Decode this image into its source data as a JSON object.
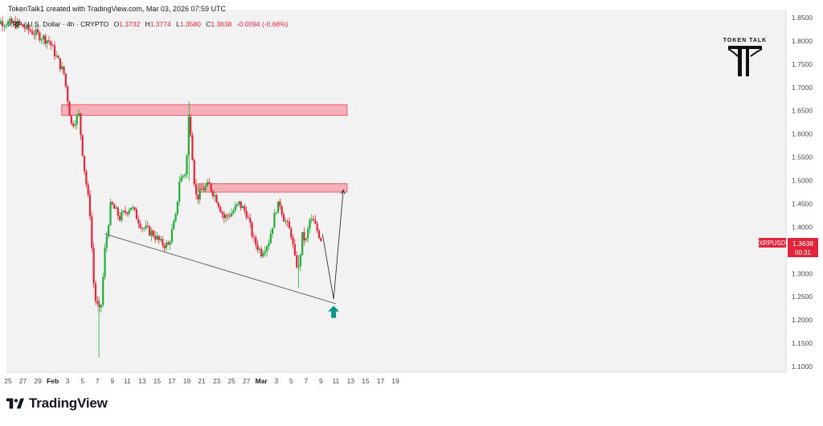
{
  "header": {
    "credit": "TokenTalk1 created with TradingView.com, Mar 03, 2026 07:59 UTC",
    "symbol_line": "XRP / U.S. Dollar · 4h · CRYPTO",
    "ohlc": {
      "o_label": "O",
      "o": "1.3732",
      "h_label": "H",
      "h": "1.3774",
      "l_label": "L",
      "l": "1.3580",
      "c_label": "C",
      "c": "1.3638",
      "change": "-0.0094 (-0.68%)"
    }
  },
  "watermark": {
    "brand": "TOKEN TALK"
  },
  "price_tag": {
    "symbol": "XRPUSD",
    "price": "1.3638",
    "countdown": "00:31"
  },
  "footer": {
    "brand": "TradingView"
  },
  "colors": {
    "up": "#26a69a",
    "down": "#ef5350",
    "up_candle": "#22ab3b",
    "down_candle": "#e0253b",
    "zone_fill": "#f6a6ad",
    "zone_border": "#e65a66",
    "arrow": "#0d9488",
    "plot_bg": "#f2f2f2"
  },
  "chart_data": {
    "type": "candlestick",
    "yaxis": {
      "ticks": [
        "1.8500",
        "1.8000",
        "1.7500",
        "1.7000",
        "1.6500",
        "1.6000",
        "1.5500",
        "1.5000",
        "1.4500",
        "1.4000",
        "1.3500",
        "1.3000",
        "1.2500",
        "1.2000",
        "1.1500",
        "1.1000"
      ],
      "range": [
        1.09,
        1.86
      ]
    },
    "xaxis": {
      "ticks": [
        "25",
        "27",
        "29",
        "Feb",
        "3",
        "5",
        "7",
        "9",
        "11",
        "13",
        "15",
        "17",
        "19",
        "21",
        "23",
        "25",
        "27",
        "Mar",
        "3",
        "5",
        "7",
        "9",
        "11",
        "13",
        "15",
        "17",
        "19"
      ],
      "start_label": "25",
      "end_label": "19"
    },
    "path_points": [
      [
        22.5,
        1.845
      ],
      [
        26.5,
        1.835
      ],
      [
        30.5,
        1.8
      ],
      [
        32.5,
        1.73
      ],
      [
        33.5,
        1.62
      ],
      [
        34.5,
        1.64
      ],
      [
        35.2,
        1.53
      ],
      [
        36.0,
        1.43
      ],
      [
        36.6,
        1.25
      ],
      [
        37.4,
        1.21
      ],
      [
        38.0,
        1.35
      ],
      [
        38.8,
        1.45
      ],
      [
        40.0,
        1.42
      ],
      [
        41.5,
        1.445
      ],
      [
        43.0,
        1.4
      ],
      [
        44.5,
        1.385
      ],
      [
        45.5,
        1.365
      ],
      [
        46.5,
        1.36
      ],
      [
        47.5,
        1.42
      ],
      [
        48.0,
        1.5
      ],
      [
        48.9,
        1.52
      ],
      [
        49.3,
        1.65
      ],
      [
        50.0,
        1.5
      ],
      [
        50.3,
        1.46
      ],
      [
        51.0,
        1.48
      ],
      [
        52.0,
        1.49
      ],
      [
        53.0,
        1.46
      ],
      [
        54.0,
        1.42
      ],
      [
        55.0,
        1.43
      ],
      [
        56.0,
        1.45
      ],
      [
        57.0,
        1.43
      ],
      [
        58.0,
        1.37
      ],
      [
        59.0,
        1.345
      ],
      [
        60.0,
        1.37
      ],
      [
        61.0,
        1.44
      ],
      [
        61.5,
        1.45
      ],
      [
        62.0,
        1.42
      ],
      [
        63.0,
        1.385
      ],
      [
        63.5,
        1.33
      ],
      [
        64.0,
        1.31
      ],
      [
        64.5,
        1.38
      ],
      [
        65.0,
        1.37
      ],
      [
        65.5,
        1.415
      ],
      [
        66.0,
        1.41
      ],
      [
        67.0,
        1.375
      ]
    ],
    "zones": [
      {
        "from": 32.2,
        "to": 70.5,
        "top": 1.663,
        "bottom": 1.64
      },
      {
        "from": 50.5,
        "to": 70.5,
        "top": 1.493,
        "bottom": 1.475
      }
    ],
    "trendline": {
      "from": [
        38.0,
        1.385
      ],
      "to": [
        69.0,
        1.235
      ]
    },
    "projection": [
      [
        67.2,
        1.385
      ],
      [
        68.7,
        1.245
      ],
      [
        70.0,
        1.48
      ]
    ],
    "marker": {
      "date": 68.7,
      "price": 1.215,
      "icon": "up-arrow-icon"
    }
  }
}
